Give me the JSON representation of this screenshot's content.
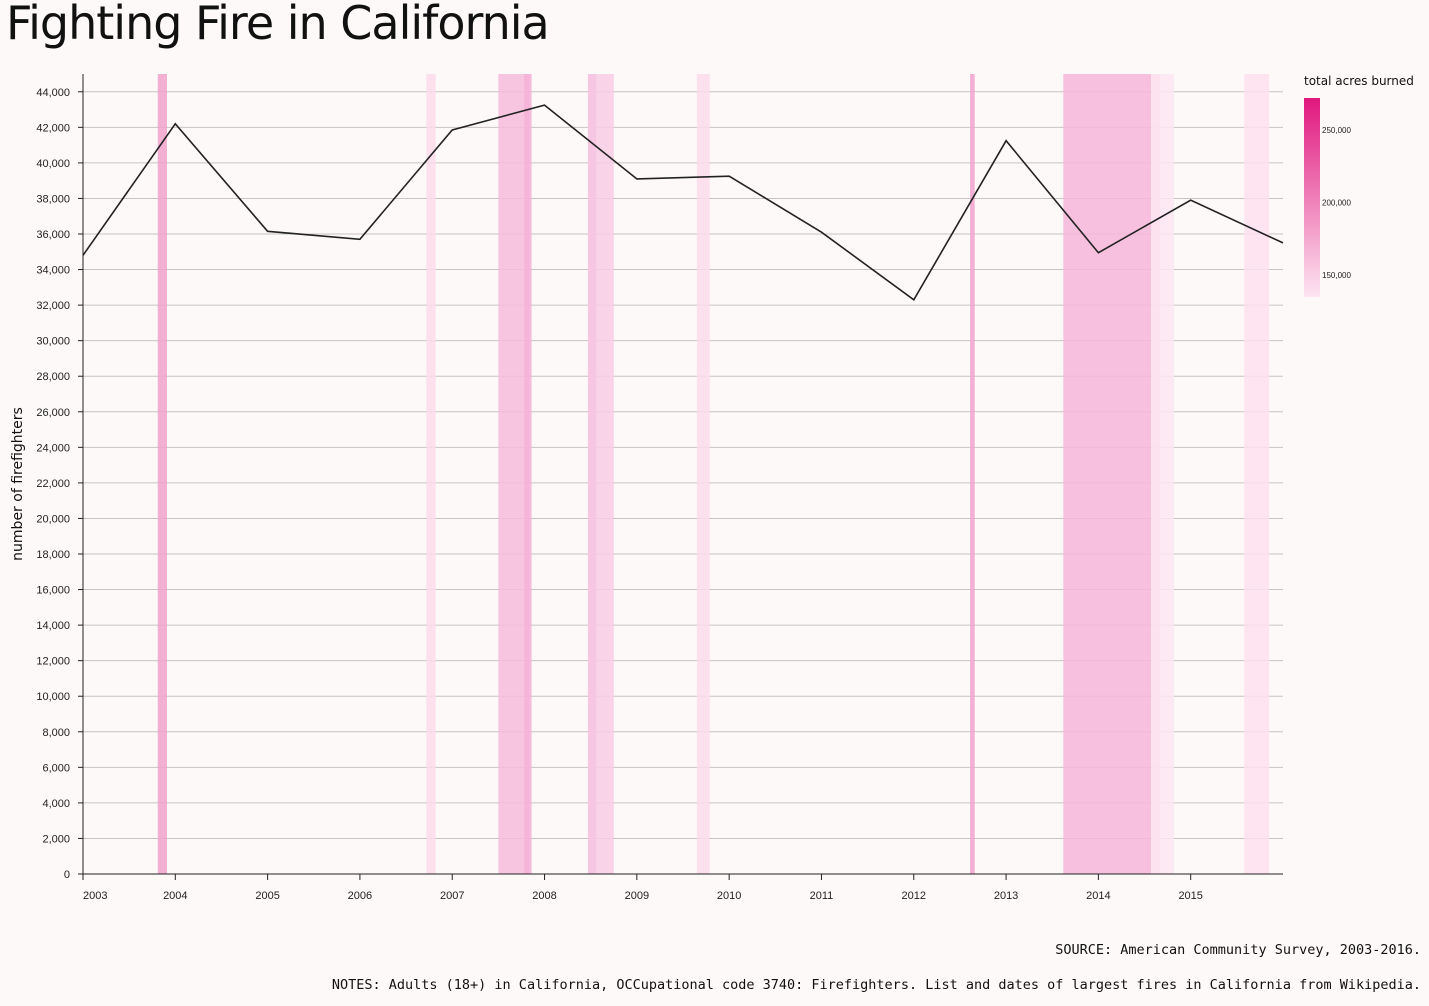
{
  "title": "Fighting Fire in California",
  "footer": {
    "source": "SOURCE: American Community Survey, 2003-2016.",
    "notes": "NOTES: Adults (18+) in California, OCCupational code 3740: Firefighters. List and dates of largest fires in California from Wikipedia."
  },
  "chart_data": {
    "type": "line",
    "title": "Fighting Fire in California",
    "xlabel": "",
    "ylabel": "number of firefighters",
    "xlim": [
      2003,
      2016
    ],
    "ylim": [
      0,
      45000
    ],
    "grid": true,
    "x_ticks": [
      2003,
      2004,
      2005,
      2006,
      2007,
      2008,
      2009,
      2010,
      2011,
      2012,
      2013,
      2014,
      2015
    ],
    "y_ticks": [
      0,
      2000,
      4000,
      6000,
      8000,
      10000,
      12000,
      14000,
      16000,
      18000,
      20000,
      22000,
      24000,
      26000,
      28000,
      30000,
      32000,
      34000,
      36000,
      38000,
      40000,
      42000,
      44000
    ],
    "y_tick_labels": [
      "0",
      "2,000",
      "4,000",
      "6,000",
      "8,000",
      "10,000",
      "12,000",
      "14,000",
      "16,000",
      "18,000",
      "20,000",
      "22,000",
      "24,000",
      "26,000",
      "28,000",
      "30,000",
      "32,000",
      "34,000",
      "36,000",
      "38,000",
      "40,000",
      "42,000",
      "44,000"
    ],
    "series": [
      {
        "name": "firefighters",
        "color": "#222222",
        "x": [
          2003,
          2004,
          2005,
          2006,
          2007,
          2008,
          2009,
          2010,
          2011,
          2012,
          2013,
          2014,
          2015,
          2016
        ],
        "values": [
          34800,
          42200,
          36150,
          35700,
          41850,
          43250,
          39100,
          39250,
          36100,
          32300,
          41250,
          34950,
          37900,
          35500
        ]
      }
    ],
    "fires": [
      {
        "start": 2003.81,
        "end": 2003.91,
        "acres": 280000,
        "color": "#f0a3cd"
      },
      {
        "start": 2006.72,
        "end": 2006.82,
        "acres": 160000,
        "color": "#fbdcec"
      },
      {
        "start": 2007.5,
        "end": 2007.83,
        "acres": 190000,
        "color": "#f6bcdc"
      },
      {
        "start": 2007.78,
        "end": 2007.86,
        "acres": 197000,
        "color": "#f4b0d6"
      },
      {
        "start": 2008.47,
        "end": 2008.75,
        "acres": 165000,
        "color": "#f8cde5"
      },
      {
        "start": 2008.47,
        "end": 2008.56,
        "acres": 170000,
        "color": "#f6c4e0"
      },
      {
        "start": 2009.65,
        "end": 2009.79,
        "acres": 160000,
        "color": "#fbdcec"
      },
      {
        "start": 2012.61,
        "end": 2012.66,
        "acres": 315000,
        "color": "#f2a2ce"
      },
      {
        "start": 2013.62,
        "end": 2014.67,
        "acres": 257000,
        "color": "#f7b6da"
      },
      {
        "start": 2014.57,
        "end": 2014.82,
        "acres": 148000,
        "color": "#fde6f2"
      },
      {
        "start": 2015.58,
        "end": 2015.85,
        "acres": 151000,
        "color": "#fde1ef"
      }
    ],
    "legend": {
      "title": "total acres burned",
      "ticks": [
        250000,
        200000,
        150000
      ],
      "tick_labels": [
        "250,000",
        "200,000",
        "150,000"
      ],
      "min": 135000,
      "max": 272000,
      "color_low": "#fde5f1",
      "color_high": "#e0177e"
    }
  }
}
